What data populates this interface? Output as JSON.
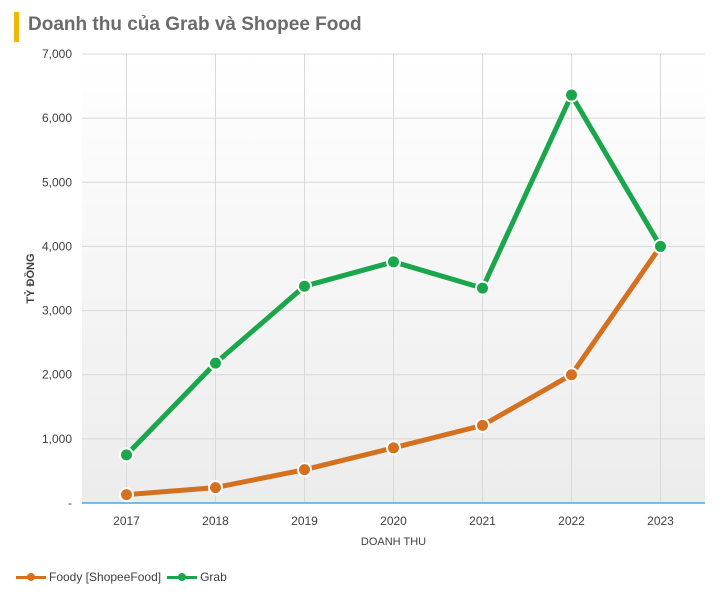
{
  "title": "Doanh thu của Grab và Shopee Food",
  "colors": {
    "accent": "#f2b705",
    "foody": "#d4701e",
    "grab": "#1aa64a",
    "axis": "#4aa8d8",
    "grid": "#d9d9d9"
  },
  "chart_data": {
    "type": "line",
    "title": "Doanh thu của Grab và Shopee Food",
    "xlabel": "DOANH THU",
    "ylabel": "TỶ ĐỒNG",
    "categories": [
      "2017",
      "2018",
      "2019",
      "2020",
      "2021",
      "2022",
      "2023"
    ],
    "ylim": [
      0,
      7000
    ],
    "yticks": [
      0,
      1000,
      2000,
      3000,
      4000,
      5000,
      6000,
      7000
    ],
    "ytick_labels": [
      "-",
      "1,000",
      "2,000",
      "3,000",
      "4,000",
      "5,000",
      "6,000",
      "7,000"
    ],
    "grid": true,
    "legend_position": "bottom-left",
    "series": [
      {
        "name": "Foody [ShopeeFood]",
        "color": "#d4701e",
        "values": [
          130,
          240,
          520,
          860,
          1210,
          2000,
          4000
        ]
      },
      {
        "name": "Grab",
        "color": "#1aa64a",
        "values": [
          750,
          2180,
          3380,
          3760,
          3350,
          6360,
          4000
        ]
      }
    ]
  }
}
